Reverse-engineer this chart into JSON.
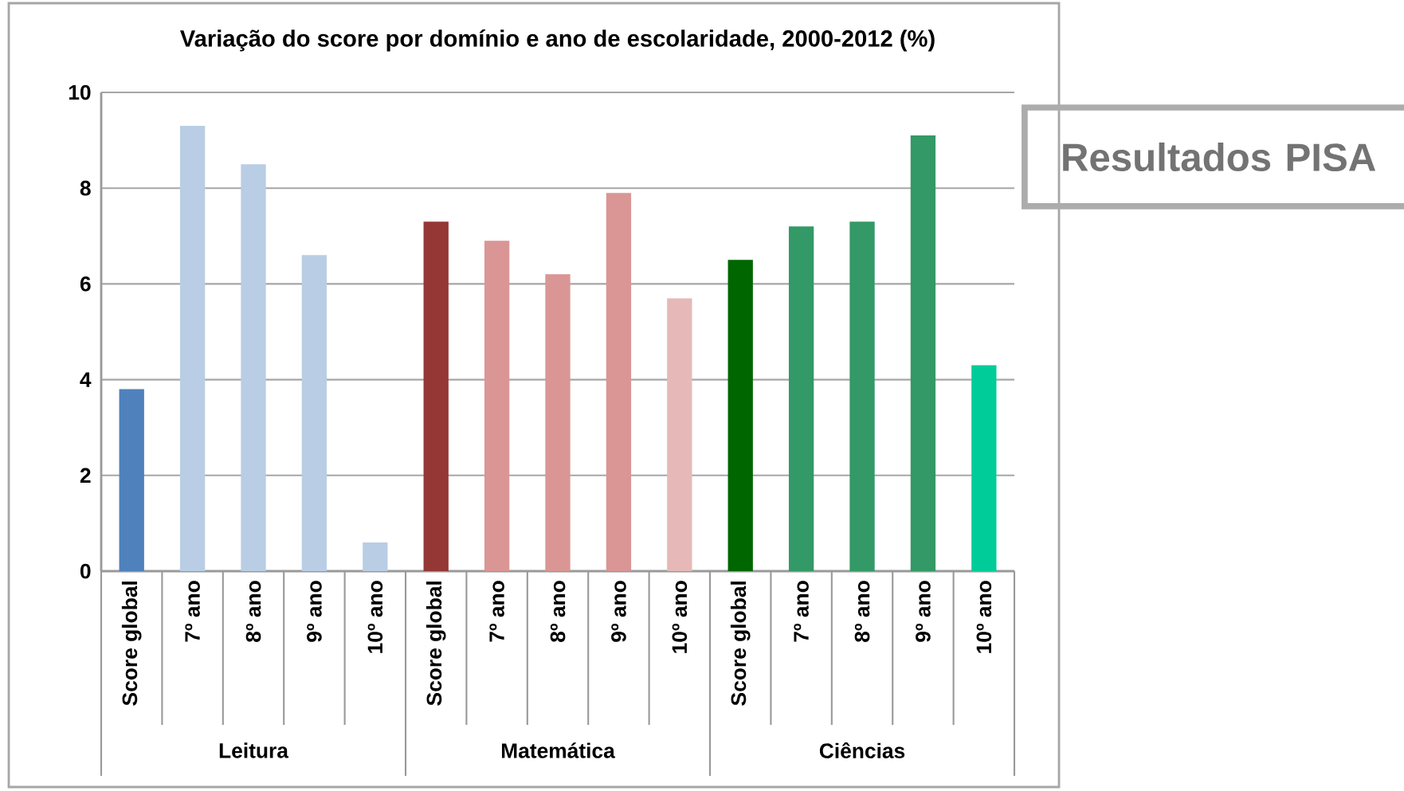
{
  "chart_data": {
    "type": "bar",
    "title": "Variação do score por domínio e ano de escolaridade, 2000-2012 (%)",
    "categories": [
      "Score global",
      "7º ano",
      "8º ano",
      "9º ano",
      "10º ano",
      "Score global",
      "7º ano",
      "8º ano",
      "9º ano",
      "10º ano",
      "Score global",
      "7º ano",
      "8º ano",
      "9º ano",
      "10º ano"
    ],
    "values": [
      3.8,
      9.3,
      8.5,
      6.6,
      0.6,
      7.3,
      6.9,
      6.2,
      7.9,
      5.7,
      6.5,
      7.2,
      7.3,
      9.1,
      4.3
    ],
    "colors": [
      "#4f81bd",
      "#b9cde5",
      "#b9cde5",
      "#b9cde5",
      "#b9cde5",
      "#953735",
      "#d99694",
      "#d99694",
      "#d99694",
      "#e6b9b8",
      "#006600",
      "#339966",
      "#339966",
      "#339966",
      "#00cc99"
    ],
    "ylim": [
      0,
      10
    ],
    "yticks": [
      0,
      2,
      4,
      6,
      8,
      10
    ],
    "grid": "y",
    "annotations": [
      "Leitura",
      "Matemática",
      "Ciências",
      "Resultados PISA"
    ]
  }
}
